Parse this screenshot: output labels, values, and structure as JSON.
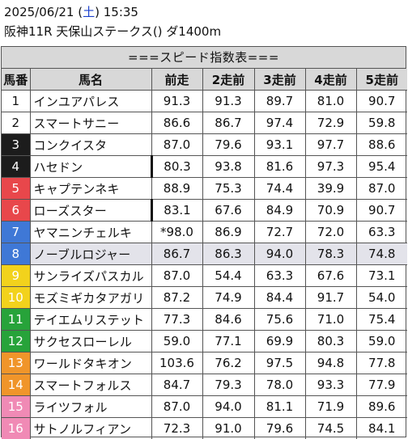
{
  "header": {
    "date": "2025/06/21",
    "dow_open": " (",
    "dow": "土",
    "dow_close": ") ",
    "time": "15:35",
    "race": "阪神11R 天保山ステークス() ダ1400m"
  },
  "table": {
    "title": "===スピード指数表===",
    "columns": [
      "馬番",
      "馬名",
      "前走",
      "2走前",
      "3走前",
      "4走前",
      "5走前"
    ],
    "rows": [
      {
        "num": "1",
        "name": "インユアパレス",
        "v": [
          "91.3",
          "91.3",
          "89.7",
          "81.0",
          "90.7"
        ],
        "bg": "#ffffff",
        "fg": "#111111",
        "thick": false,
        "highlight": false
      },
      {
        "num": "2",
        "name": "スマートサニー",
        "v": [
          "86.6",
          "86.7",
          "97.4",
          "72.9",
          "59.8"
        ],
        "bg": "#ffffff",
        "fg": "#111111",
        "thick": false,
        "highlight": false
      },
      {
        "num": "3",
        "name": "コンクイスタ",
        "v": [
          "87.0",
          "79.6",
          "93.1",
          "97.7",
          "88.6"
        ],
        "bg": "#1c1c1c",
        "fg": "#ffffff",
        "thick": false,
        "highlight": false
      },
      {
        "num": "4",
        "name": "ハセドン",
        "v": [
          "80.3",
          "93.8",
          "81.6",
          "97.3",
          "95.4"
        ],
        "bg": "#1c1c1c",
        "fg": "#ffffff",
        "thick": true,
        "highlight": false
      },
      {
        "num": "5",
        "name": "キャプテンネキ",
        "v": [
          "88.9",
          "75.3",
          "74.4",
          "39.9",
          "87.0"
        ],
        "bg": "#e8474b",
        "fg": "#ffffff",
        "thick": false,
        "highlight": false
      },
      {
        "num": "6",
        "name": "ローズスター",
        "v": [
          "83.1",
          "67.6",
          "84.9",
          "70.9",
          "90.7"
        ],
        "bg": "#e8474b",
        "fg": "#ffffff",
        "thick": true,
        "highlight": false
      },
      {
        "num": "7",
        "name": "ヤマニンチェルキ",
        "v": [
          "*98.0",
          "86.9",
          "72.7",
          "72.0",
          "63.3"
        ],
        "bg": "#3f78d6",
        "fg": "#ffffff",
        "thick": false,
        "highlight": false
      },
      {
        "num": "8",
        "name": "ノーブルロジャー",
        "v": [
          "86.7",
          "86.3",
          "94.0",
          "78.3",
          "74.8"
        ],
        "bg": "#3f78d6",
        "fg": "#ffffff",
        "thick": false,
        "highlight": true
      },
      {
        "num": "9",
        "name": "サンライズパスカル",
        "v": [
          "87.0",
          "54.4",
          "63.3",
          "67.6",
          "73.1"
        ],
        "bg": "#f2d21c",
        "fg": "#ffffff",
        "thick": false,
        "highlight": false
      },
      {
        "num": "10",
        "name": "モズミギカタアガリ",
        "v": [
          "87.2",
          "74.9",
          "84.4",
          "91.7",
          "54.0"
        ],
        "bg": "#f2d21c",
        "fg": "#ffffff",
        "thick": false,
        "highlight": false
      },
      {
        "num": "11",
        "name": "テイエムリステット",
        "v": [
          "77.3",
          "84.6",
          "75.6",
          "71.0",
          "75.4"
        ],
        "bg": "#27a33a",
        "fg": "#ffffff",
        "thick": false,
        "highlight": false
      },
      {
        "num": "12",
        "name": "サクセスローレル",
        "v": [
          "59.0",
          "77.1",
          "69.9",
          "80.3",
          "59.0"
        ],
        "bg": "#27a33a",
        "fg": "#ffffff",
        "thick": false,
        "highlight": false
      },
      {
        "num": "13",
        "name": "ワールドタキオン",
        "v": [
          "103.6",
          "76.2",
          "97.5",
          "94.8",
          "77.8"
        ],
        "bg": "#f0952a",
        "fg": "#ffffff",
        "thick": false,
        "highlight": false
      },
      {
        "num": "14",
        "name": "スマートフォルス",
        "v": [
          "84.7",
          "79.3",
          "78.0",
          "93.3",
          "77.9"
        ],
        "bg": "#f0952a",
        "fg": "#ffffff",
        "thick": false,
        "highlight": false
      },
      {
        "num": "15",
        "name": "ライツフォル",
        "v": [
          "87.0",
          "94.0",
          "81.1",
          "71.9",
          "89.6"
        ],
        "bg": "#f08ab5",
        "fg": "#ffffff",
        "thick": false,
        "highlight": false
      },
      {
        "num": "16",
        "name": "サトノルフィアン",
        "v": [
          "72.3",
          "91.0",
          "79.6",
          "74.5",
          "84.1"
        ],
        "bg": "#f08ab5",
        "fg": "#ffffff",
        "thick": false,
        "highlight": false
      }
    ]
  }
}
